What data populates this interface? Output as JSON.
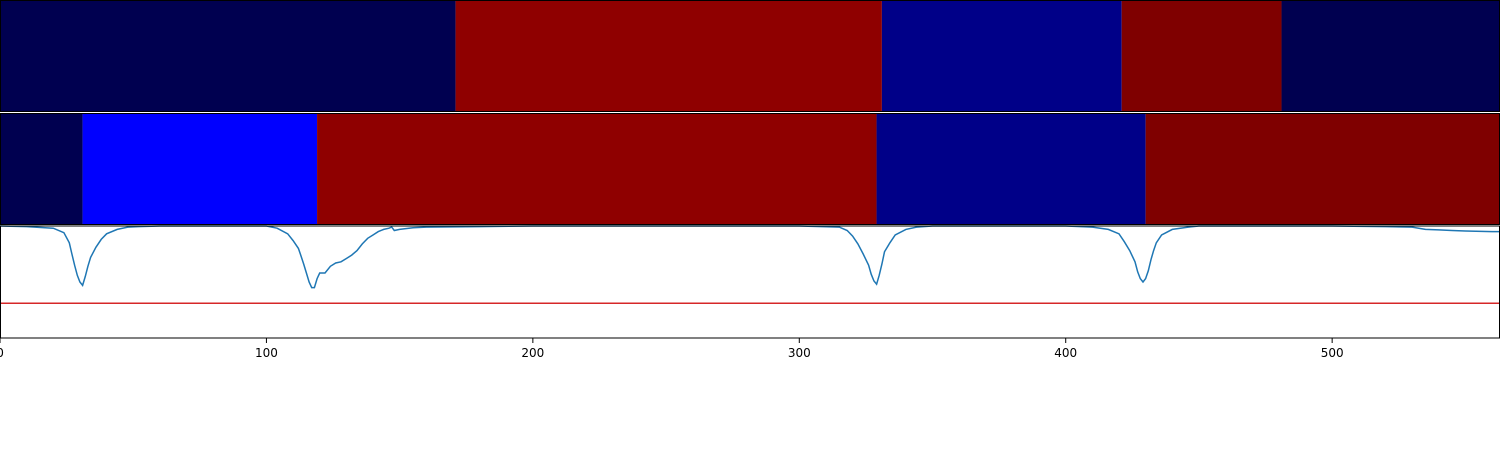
{
  "chart_data": [
    {
      "type": "heatmap",
      "panel": "segments-top",
      "segments": [
        {
          "start": 0,
          "end": 171,
          "color": "#000050"
        },
        {
          "start": 171,
          "end": 331,
          "color": "#8f0000"
        },
        {
          "start": 331,
          "end": 421,
          "color": "#000088"
        },
        {
          "start": 421,
          "end": 481,
          "color": "#7f0000"
        },
        {
          "start": 481,
          "end": 563,
          "color": "#000050"
        }
      ],
      "xlim": [
        0,
        563
      ]
    },
    {
      "type": "heatmap",
      "panel": "segments-middle",
      "segments": [
        {
          "start": 0,
          "end": 31,
          "color": "#000050"
        },
        {
          "start": 31,
          "end": 119,
          "color": "#0000ff"
        },
        {
          "start": 119,
          "end": 329,
          "color": "#8f0000"
        },
        {
          "start": 329,
          "end": 430,
          "color": "#000088"
        },
        {
          "start": 430,
          "end": 563,
          "color": "#7f0000"
        }
      ],
      "xlim": [
        0,
        563
      ]
    },
    {
      "type": "line",
      "panel": "signal",
      "xlim": [
        0,
        563
      ],
      "ylim": [
        0,
        1
      ],
      "xticks": [
        0,
        100,
        200,
        300,
        400,
        500
      ],
      "line_color": "#1f77b4",
      "threshold": {
        "value": 0.31,
        "color": "#d62728"
      },
      "series": [
        {
          "x": [
            0,
            10,
            20,
            24,
            26,
            27,
            28,
            29,
            30,
            31,
            32,
            33,
            34,
            36,
            38,
            40,
            44,
            48,
            52,
            60,
            80,
            100,
            104,
            108,
            110,
            112,
            113,
            114,
            115,
            116,
            117,
            118,
            119,
            120,
            122,
            124,
            126,
            128,
            130,
            132,
            134,
            136,
            138,
            140,
            142,
            144,
            146,
            147,
            148,
            150,
            155,
            160,
            180,
            200,
            250,
            300,
            315,
            318,
            320,
            322,
            324,
            326,
            327,
            328,
            329,
            330,
            331,
            332,
            334,
            336,
            340,
            344,
            350,
            360,
            400,
            410,
            416,
            420,
            422,
            424,
            426,
            427,
            428,
            429,
            430,
            431,
            432,
            433,
            434,
            436,
            440,
            446,
            450,
            470,
            500,
            520,
            530,
            535,
            540,
            545,
            550,
            560,
            563
          ],
          "y": [
            1.0,
            0.995,
            0.98,
            0.94,
            0.85,
            0.75,
            0.65,
            0.56,
            0.5,
            0.47,
            0.55,
            0.64,
            0.72,
            0.81,
            0.88,
            0.93,
            0.97,
            0.99,
            0.995,
            1.0,
            1.0,
            1.0,
            0.98,
            0.93,
            0.87,
            0.8,
            0.73,
            0.66,
            0.58,
            0.5,
            0.45,
            0.45,
            0.53,
            0.58,
            0.58,
            0.64,
            0.67,
            0.68,
            0.71,
            0.74,
            0.78,
            0.84,
            0.89,
            0.92,
            0.95,
            0.97,
            0.98,
            0.99,
            0.96,
            0.97,
            0.985,
            0.99,
            0.995,
            1.0,
            1.0,
            1.0,
            0.99,
            0.96,
            0.91,
            0.84,
            0.75,
            0.65,
            0.57,
            0.51,
            0.48,
            0.56,
            0.66,
            0.77,
            0.85,
            0.92,
            0.97,
            0.99,
            1.0,
            1.0,
            1.0,
            0.99,
            0.97,
            0.93,
            0.86,
            0.78,
            0.68,
            0.59,
            0.53,
            0.5,
            0.53,
            0.6,
            0.7,
            0.78,
            0.85,
            0.92,
            0.97,
            0.99,
            1.0,
            1.0,
            1.0,
            0.995,
            0.99,
            0.97,
            0.965,
            0.96,
            0.955,
            0.95,
            0.95
          ]
        }
      ]
    }
  ]
}
